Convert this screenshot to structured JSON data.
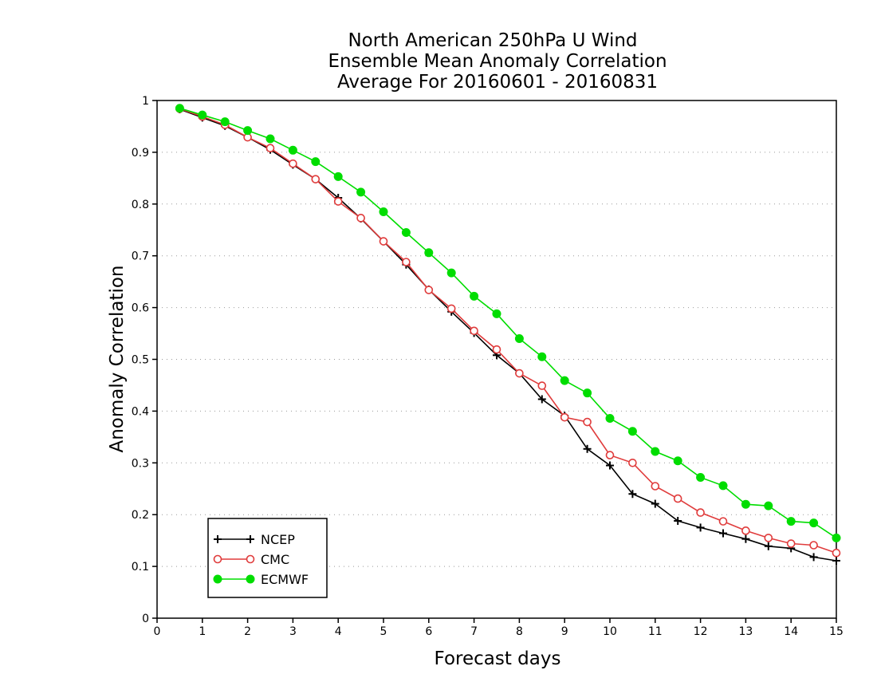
{
  "chart_data": {
    "type": "line",
    "title": [
      "North American 250hPa U Wind",
      "Ensemble Mean Anomaly Correlation",
      "Average For 20160601 - 20160831"
    ],
    "xlabel": "Forecast days",
    "ylabel": "Anomaly Correlation",
    "xlim": [
      0,
      15
    ],
    "ylim": [
      0,
      1
    ],
    "x_ticks": [
      "0",
      "1",
      "2",
      "3",
      "4",
      "5",
      "6",
      "7",
      "8",
      "9",
      "10",
      "11",
      "12",
      "13",
      "14",
      "15"
    ],
    "y_ticks": [
      "0",
      "0.1",
      "0.2",
      "0.3",
      "0.4",
      "0.5",
      "0.6",
      "0.7",
      "0.8",
      "0.9",
      "1"
    ],
    "grid": "horizontal dotted",
    "legend_position": "bottom-left",
    "x": [
      0.5,
      1,
      1.5,
      2,
      2.5,
      3,
      3.5,
      4,
      4.5,
      5,
      5.5,
      6,
      6.5,
      7,
      7.5,
      8,
      8.5,
      9,
      9.5,
      10,
      10.5,
      11,
      11.5,
      12,
      12.5,
      13,
      13.5,
      14,
      14.5,
      15
    ],
    "series": [
      {
        "name": "NCEP",
        "color": "#000000",
        "marker": "plus",
        "values": [
          0.983,
          0.967,
          0.951,
          0.929,
          0.905,
          0.876,
          0.848,
          0.812,
          0.772,
          0.728,
          0.683,
          0.635,
          0.592,
          0.551,
          0.508,
          0.473,
          0.423,
          0.391,
          0.327,
          0.295,
          0.24,
          0.221,
          0.188,
          0.175,
          0.164,
          0.153,
          0.139,
          0.135,
          0.118,
          0.111
        ]
      },
      {
        "name": "CMC",
        "color": "#e03c3c",
        "marker": "open-circle",
        "values": [
          0.984,
          0.969,
          0.953,
          0.929,
          0.908,
          0.878,
          0.848,
          0.805,
          0.773,
          0.728,
          0.688,
          0.634,
          0.598,
          0.555,
          0.519,
          0.473,
          0.449,
          0.388,
          0.379,
          0.315,
          0.3,
          0.255,
          0.231,
          0.204,
          0.187,
          0.169,
          0.155,
          0.144,
          0.141,
          0.126
        ]
      },
      {
        "name": "ECMWF",
        "color": "#00dd00",
        "marker": "filled-circle",
        "values": [
          0.985,
          0.972,
          0.959,
          0.942,
          0.926,
          0.904,
          0.882,
          0.853,
          0.823,
          0.785,
          0.745,
          0.706,
          0.667,
          0.622,
          0.588,
          0.54,
          0.505,
          0.459,
          0.435,
          0.386,
          0.361,
          0.322,
          0.304,
          0.272,
          0.256,
          0.22,
          0.217,
          0.187,
          0.184,
          0.155
        ]
      }
    ]
  }
}
